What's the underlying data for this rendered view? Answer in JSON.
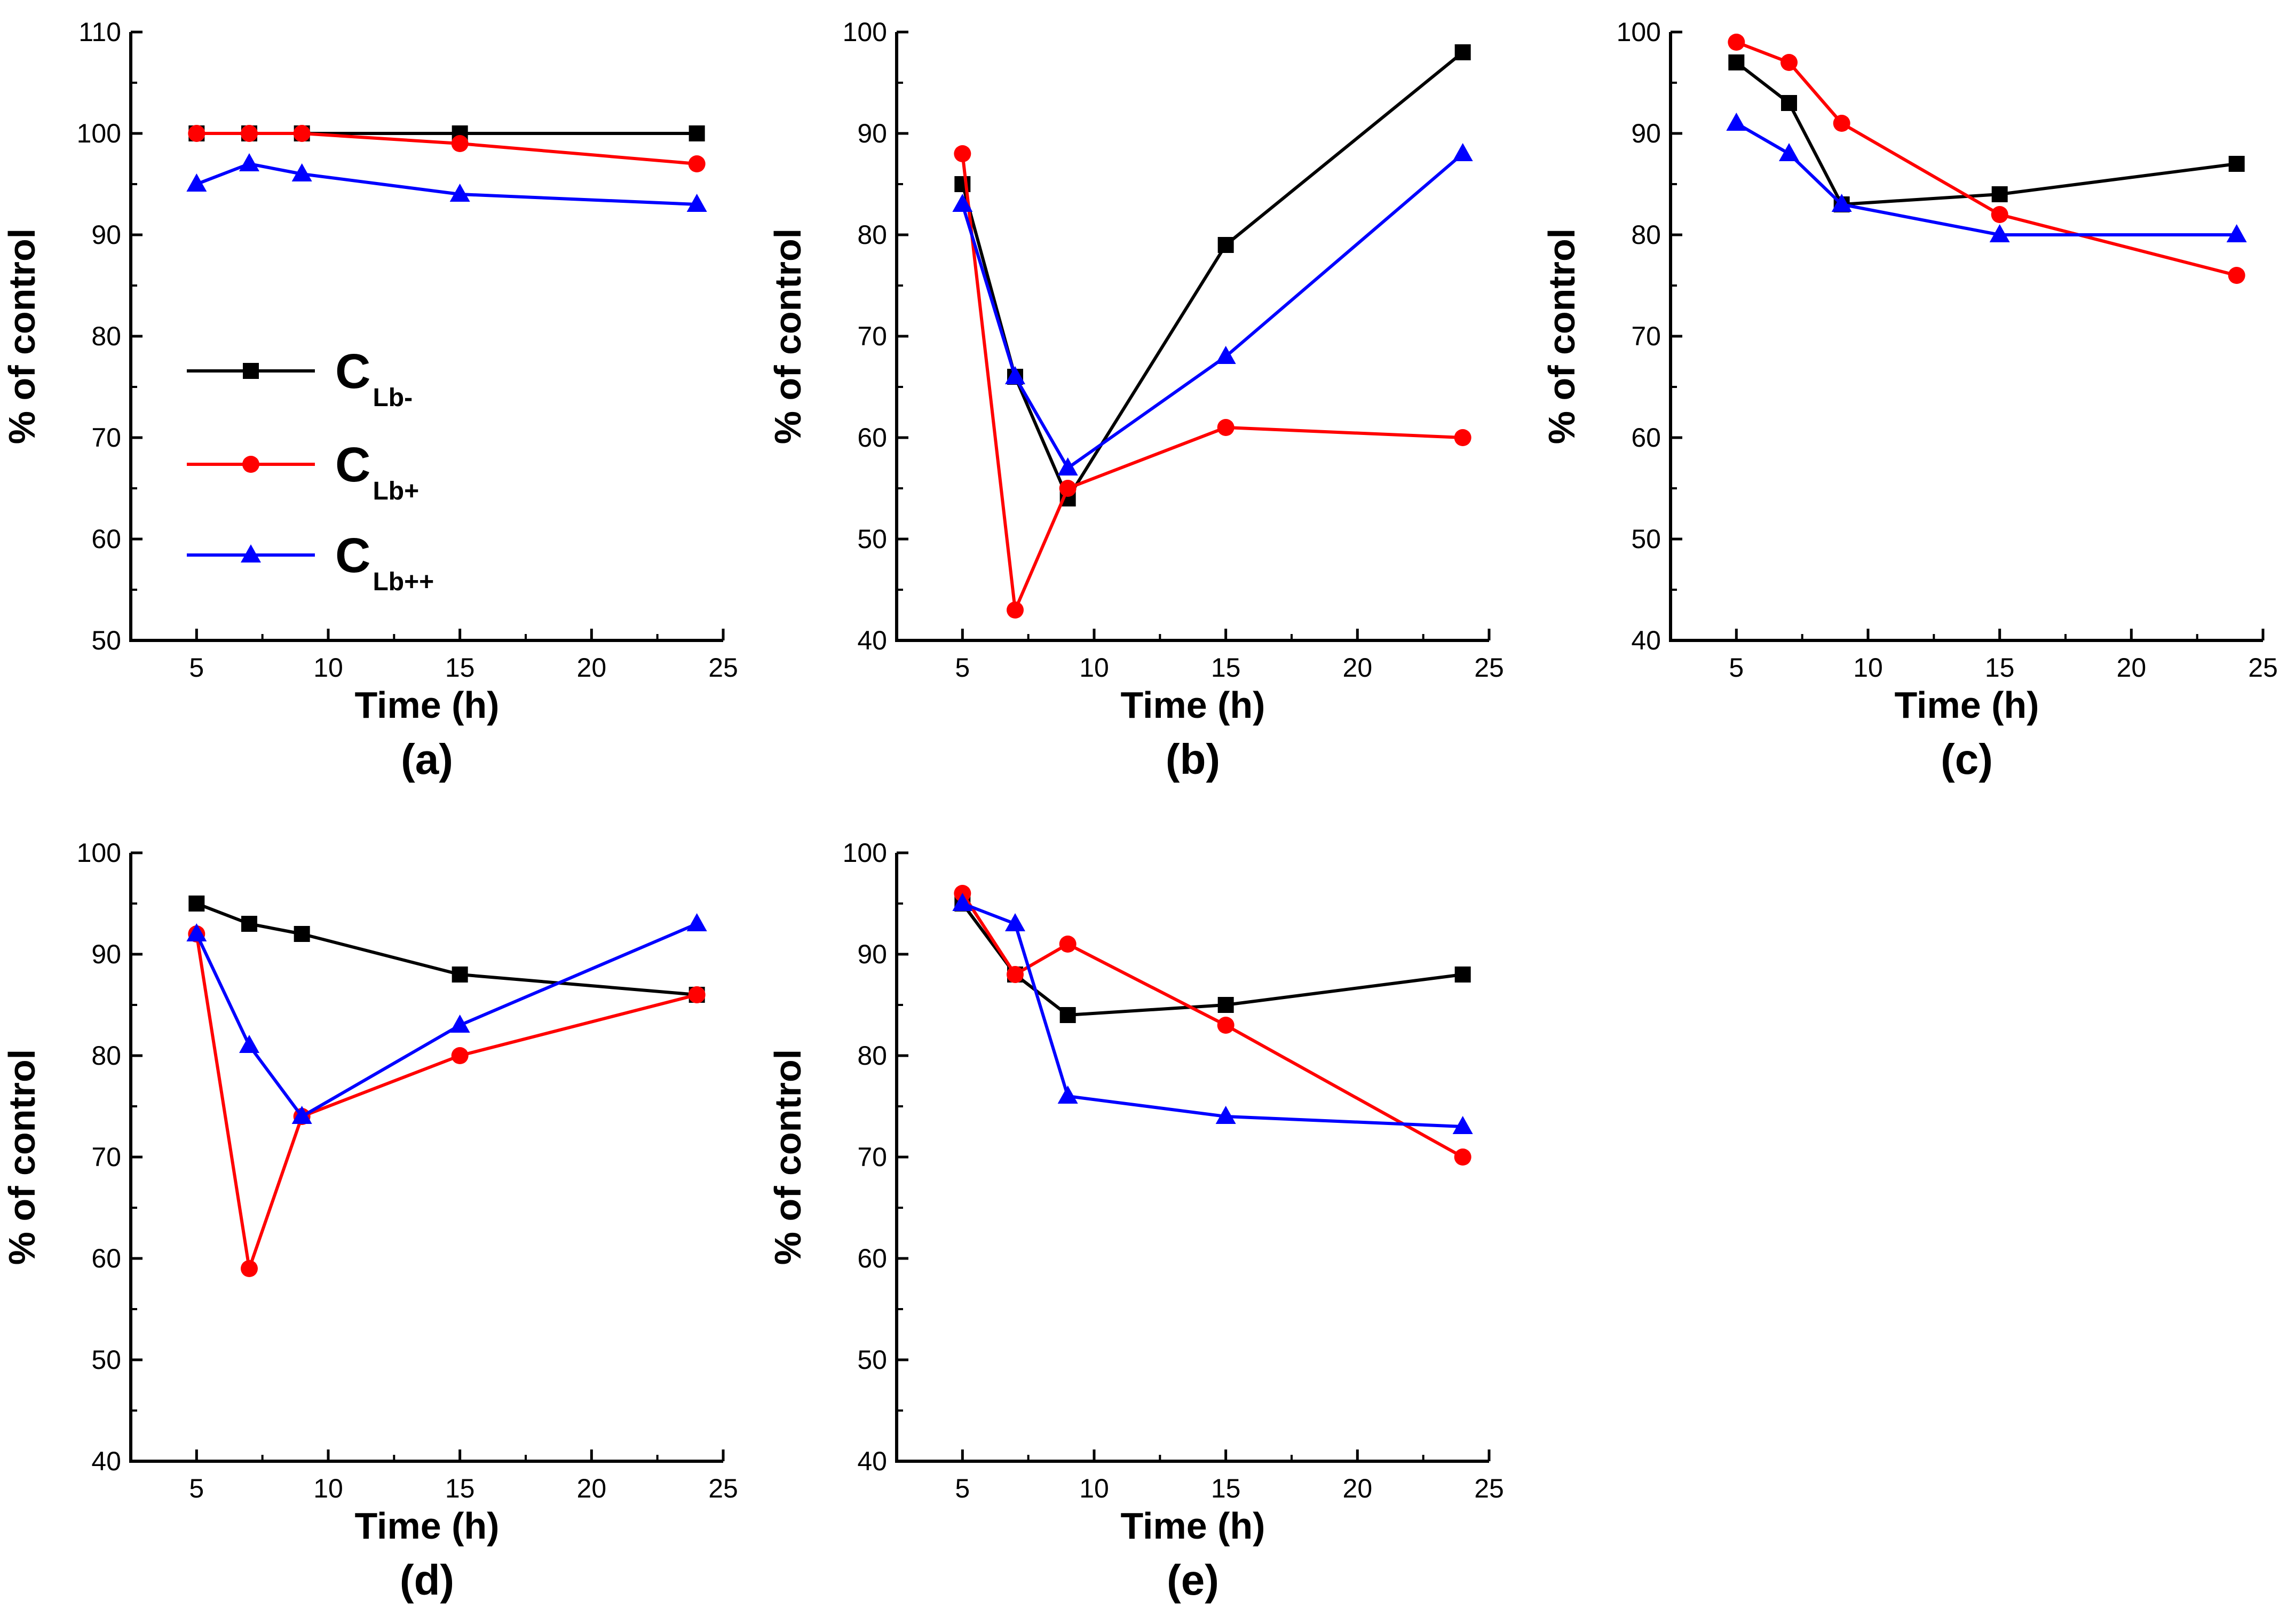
{
  "legend": {
    "entries": [
      {
        "base": "C",
        "sub": "Lb-",
        "color": "#000000",
        "marker": "square"
      },
      {
        "base": "C",
        "sub": "Lb+",
        "color": "#ff0000",
        "marker": "circle"
      },
      {
        "base": "C",
        "sub": "Lb++",
        "color": "#0000ff",
        "marker": "triangle"
      }
    ]
  },
  "chart_data": [
    {
      "type": "line",
      "panel_label": "(a)",
      "xlabel": "Time (h)",
      "ylabel": "% of control",
      "xlim": [
        2.5,
        25
      ],
      "ylim": [
        50,
        110
      ],
      "xticks": [
        5,
        10,
        15,
        20,
        25
      ],
      "yticks": [
        50,
        60,
        70,
        80,
        90,
        100,
        110
      ],
      "legend_position": "center-left",
      "x": [
        5,
        7,
        9,
        15,
        24
      ],
      "series": [
        {
          "name": "CLb-",
          "color": "#000000",
          "marker": "square",
          "values": [
            100,
            100,
            100,
            100,
            100
          ]
        },
        {
          "name": "CLb+",
          "color": "#ff0000",
          "marker": "circle",
          "values": [
            100,
            100,
            100,
            99,
            97
          ]
        },
        {
          "name": "CLb++",
          "color": "#0000ff",
          "marker": "triangle",
          "values": [
            95,
            97,
            96,
            94,
            93
          ]
        }
      ]
    },
    {
      "type": "line",
      "panel_label": "(b)",
      "xlabel": "Time (h)",
      "ylabel": "% of control",
      "xlim": [
        2.5,
        25
      ],
      "ylim": [
        40,
        100
      ],
      "xticks": [
        5,
        10,
        15,
        20,
        25
      ],
      "yticks": [
        40,
        50,
        60,
        70,
        80,
        90,
        100
      ],
      "x": [
        5,
        7,
        9,
        15,
        24
      ],
      "series": [
        {
          "name": "CLb-",
          "color": "#000000",
          "marker": "square",
          "values": [
            85,
            66,
            54,
            79,
            98
          ]
        },
        {
          "name": "CLb+",
          "color": "#ff0000",
          "marker": "circle",
          "values": [
            88,
            43,
            55,
            61,
            60
          ]
        },
        {
          "name": "CLb++",
          "color": "#0000ff",
          "marker": "triangle",
          "values": [
            83,
            66,
            57,
            68,
            88
          ]
        }
      ]
    },
    {
      "type": "line",
      "panel_label": "(c)",
      "xlabel": "Time (h)",
      "ylabel": "% of control",
      "xlim": [
        2.5,
        25
      ],
      "ylim": [
        40,
        100
      ],
      "xticks": [
        5,
        10,
        15,
        20,
        25
      ],
      "yticks": [
        40,
        50,
        60,
        70,
        80,
        90,
        100
      ],
      "x": [
        5,
        7,
        9,
        15,
        24
      ],
      "series": [
        {
          "name": "CLb-",
          "color": "#000000",
          "marker": "square",
          "values": [
            97,
            93,
            83,
            84,
            87
          ]
        },
        {
          "name": "CLb+",
          "color": "#ff0000",
          "marker": "circle",
          "values": [
            99,
            97,
            91,
            82,
            76
          ]
        },
        {
          "name": "CLb++",
          "color": "#0000ff",
          "marker": "triangle",
          "values": [
            91,
            88,
            83,
            80,
            80
          ]
        }
      ]
    },
    {
      "type": "line",
      "panel_label": "(d)",
      "xlabel": "Time (h)",
      "ylabel": "% of control",
      "xlim": [
        2.5,
        25
      ],
      "ylim": [
        40,
        100
      ],
      "xticks": [
        5,
        10,
        15,
        20,
        25
      ],
      "yticks": [
        40,
        50,
        60,
        70,
        80,
        90,
        100
      ],
      "x": [
        5,
        7,
        9,
        15,
        24
      ],
      "series": [
        {
          "name": "CLb-",
          "color": "#000000",
          "marker": "square",
          "values": [
            95,
            93,
            92,
            88,
            86
          ]
        },
        {
          "name": "CLb+",
          "color": "#ff0000",
          "marker": "circle",
          "values": [
            92,
            59,
            74,
            80,
            86
          ]
        },
        {
          "name": "CLb++",
          "color": "#0000ff",
          "marker": "triangle",
          "values": [
            92,
            81,
            74,
            83,
            93
          ]
        }
      ]
    },
    {
      "type": "line",
      "panel_label": "(e)",
      "xlabel": "Time (h)",
      "ylabel": "% of control",
      "xlim": [
        2.5,
        25
      ],
      "ylim": [
        40,
        100
      ],
      "xticks": [
        5,
        10,
        15,
        20,
        25
      ],
      "yticks": [
        40,
        50,
        60,
        70,
        80,
        90,
        100
      ],
      "x": [
        5,
        7,
        9,
        15,
        24
      ],
      "series": [
        {
          "name": "CLb-",
          "color": "#000000",
          "marker": "square",
          "values": [
            95,
            88,
            84,
            85,
            88
          ]
        },
        {
          "name": "CLb+",
          "color": "#ff0000",
          "marker": "circle",
          "values": [
            96,
            88,
            91,
            83,
            70
          ]
        },
        {
          "name": "CLb++",
          "color": "#0000ff",
          "marker": "triangle",
          "values": [
            95,
            93,
            76,
            74,
            73
          ]
        }
      ]
    }
  ]
}
